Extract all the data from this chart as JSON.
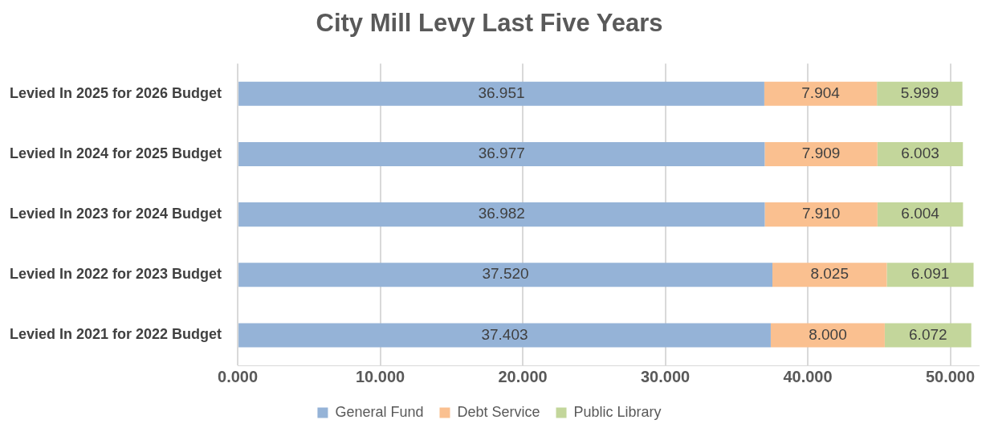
{
  "chart_data": {
    "type": "bar",
    "orientation": "horizontal",
    "stacked": true,
    "title": "City Mill Levy Last Five Years",
    "categories": [
      "Levied In 2025 for 2026 Budget",
      "Levied In 2024 for 2025 Budget",
      "Levied In 2023 for 2024 Budget",
      "Levied In 2022 for 2023 Budget",
      "Levied In 2021 for 2022 Budget"
    ],
    "series": [
      {
        "name": "General Fund",
        "color": "#95b3d7",
        "values": [
          36.951,
          36.977,
          36.982,
          37.52,
          37.403
        ],
        "value_labels": [
          "36.951",
          "36.977",
          "36.982",
          "37.520",
          "37.403"
        ]
      },
      {
        "name": "Debt Service",
        "color": "#fac090",
        "values": [
          7.904,
          7.909,
          7.91,
          8.025,
          8.0
        ],
        "value_labels": [
          "7.904",
          "7.909",
          "7.910",
          "8.025",
          "8.000"
        ]
      },
      {
        "name": "Public Library",
        "color": "#c3d69b",
        "values": [
          5.999,
          6.003,
          6.004,
          6.091,
          6.072
        ],
        "value_labels": [
          "5.999",
          "6.003",
          "6.004",
          "6.091",
          "6.072"
        ]
      }
    ],
    "xlim": [
      0,
      52
    ],
    "xticks": [
      {
        "value": 0,
        "label": "0.000"
      },
      {
        "value": 10,
        "label": "10.000"
      },
      {
        "value": 20,
        "label": "20.000"
      },
      {
        "value": 30,
        "label": "30.000"
      },
      {
        "value": 40,
        "label": "40.000"
      },
      {
        "value": 50,
        "label": "50.000"
      }
    ],
    "grid": "x",
    "legend": "bottom"
  }
}
